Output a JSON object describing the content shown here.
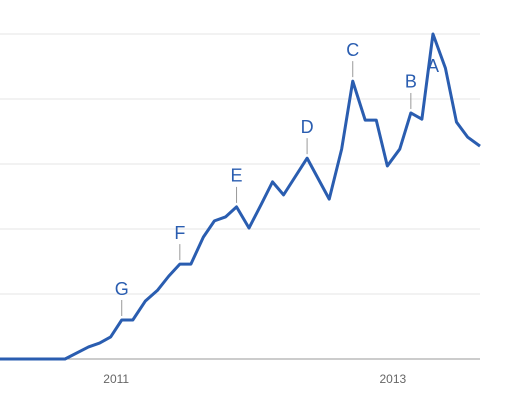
{
  "chart_data": {
    "type": "line",
    "x": [
      2010.16,
      2010.63,
      2010.8,
      2010.88,
      2010.96,
      2011.04,
      2011.12,
      2011.21,
      2011.3,
      2011.38,
      2011.46,
      2011.54,
      2011.63,
      2011.71,
      2011.79,
      2011.87,
      2011.96,
      2012.05,
      2012.13,
      2012.21,
      2012.38,
      2012.54,
      2012.63,
      2012.71,
      2012.8,
      2012.88,
      2012.96,
      2013.05,
      2013.13,
      2013.21,
      2013.29,
      2013.38,
      2013.46,
      2013.54,
      2013.63
    ],
    "series": [
      {
        "color": "#2a5db0",
        "values": [
          0,
          0,
          3.7,
          4.9,
          6.8,
          12,
          12,
          17.8,
          21.2,
          25.5,
          29.2,
          29.2,
          37.5,
          42.5,
          43.7,
          46.8,
          40.3,
          47.7,
          54.5,
          50.5,
          61.8,
          49.2,
          64.6,
          85.5,
          73.5,
          73.5,
          59.4,
          64.6,
          75.7,
          73.8,
          100,
          89.5,
          72.9,
          68.3,
          65.5
        ]
      }
    ],
    "xlim": [
      2010.16,
      2013.63
    ],
    "xticks": [
      {
        "value": 2011,
        "label": "2011"
      },
      {
        "value": 2013,
        "label": "2013"
      }
    ],
    "ylim": [
      0,
      100
    ],
    "yticks": [
      0,
      20,
      40,
      60,
      80,
      100
    ],
    "grid": true,
    "annotations": [
      {
        "text": "G",
        "x": 2011.04
      },
      {
        "text": "F",
        "x": 2011.46
      },
      {
        "text": "E",
        "x": 2011.87
      },
      {
        "text": "D",
        "x": 2012.38
      },
      {
        "text": "C",
        "x": 2012.71
      },
      {
        "text": "B",
        "x": 2013.13
      },
      {
        "text": "A",
        "x": 2013.29
      }
    ]
  }
}
